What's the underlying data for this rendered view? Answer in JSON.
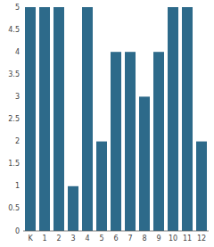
{
  "chart_data": {
    "type": "bar",
    "categories": [
      "K",
      "1",
      "2",
      "3",
      "4",
      "5",
      "6",
      "7",
      "8",
      "9",
      "10",
      "11",
      "12"
    ],
    "values": [
      5,
      5,
      5,
      1,
      5,
      2,
      4,
      4,
      3,
      4,
      5,
      5,
      2
    ],
    "color": "#2d6a8a",
    "ylim": [
      0,
      5
    ],
    "yticks": [
      0,
      0.5,
      1,
      1.5,
      2,
      2.5,
      3,
      3.5,
      4,
      4.5,
      5
    ],
    "grid": false
  }
}
